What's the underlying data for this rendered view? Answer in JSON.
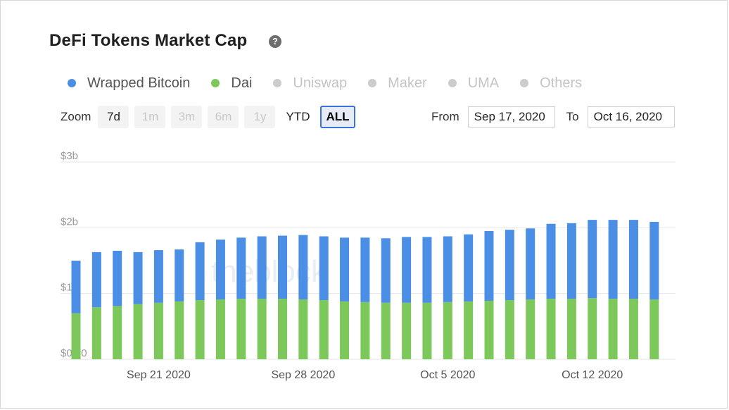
{
  "title": "DeFi Tokens Market Cap",
  "help_icon": "question-circle-icon",
  "legend": [
    {
      "label": "Wrapped Bitcoin",
      "color": "#4a8ee6",
      "enabled": true
    },
    {
      "label": "Dai",
      "color": "#7cc85a",
      "enabled": true
    },
    {
      "label": "Uniswap",
      "color": "#cccccc",
      "enabled": false
    },
    {
      "label": "Maker",
      "color": "#cccccc",
      "enabled": false
    },
    {
      "label": "UMA",
      "color": "#cccccc",
      "enabled": false
    },
    {
      "label": "Others",
      "color": "#cccccc",
      "enabled": false
    }
  ],
  "zoom": {
    "label": "Zoom",
    "buttons": [
      {
        "label": "7d",
        "state": "enabled"
      },
      {
        "label": "1m",
        "state": "disabled"
      },
      {
        "label": "3m",
        "state": "disabled"
      },
      {
        "label": "6m",
        "state": "disabled"
      },
      {
        "label": "1y",
        "state": "disabled"
      },
      {
        "label": "YTD",
        "state": "plain"
      },
      {
        "label": "ALL",
        "state": "active"
      }
    ]
  },
  "range": {
    "from_label": "From",
    "from_value": "Sep 17, 2020",
    "to_label": "To",
    "to_value": "Oct 16, 2020"
  },
  "watermark": "theblock",
  "chart_data": {
    "type": "bar",
    "stacked": true,
    "x_start": "Sep 17 2020",
    "x_end": "Oct 16 2020",
    "categories": [
      "Sep 17 2020",
      "Sep 18 2020",
      "Sep 19 2020",
      "Sep 20 2020",
      "Sep 21 2020",
      "Sep 22 2020",
      "Sep 23 2020",
      "Sep 24 2020",
      "Sep 25 2020",
      "Sep 26 2020",
      "Sep 27 2020",
      "Sep 28 2020",
      "Sep 29 2020",
      "Sep 30 2020",
      "Oct 1 2020",
      "Oct 2 2020",
      "Oct 3 2020",
      "Oct 4 2020",
      "Oct 5 2020",
      "Oct 6 2020",
      "Oct 7 2020",
      "Oct 8 2020",
      "Oct 9 2020",
      "Oct 10 2020",
      "Oct 11 2020",
      "Oct 12 2020",
      "Oct 13 2020",
      "Oct 14 2020",
      "Oct 15 2020"
    ],
    "series": [
      {
        "name": "Dai",
        "color": "#7cc85a",
        "values": [
          0.7,
          0.79,
          0.81,
          0.84,
          0.86,
          0.88,
          0.9,
          0.91,
          0.92,
          0.92,
          0.92,
          0.91,
          0.9,
          0.88,
          0.87,
          0.86,
          0.86,
          0.86,
          0.87,
          0.88,
          0.89,
          0.9,
          0.91,
          0.92,
          0.92,
          0.93,
          0.92,
          0.92,
          0.91
        ]
      },
      {
        "name": "Wrapped Bitcoin",
        "color": "#4a8ee6",
        "values": [
          0.8,
          0.84,
          0.84,
          0.79,
          0.8,
          0.79,
          0.88,
          0.91,
          0.93,
          0.95,
          0.96,
          0.98,
          0.97,
          0.97,
          0.98,
          0.98,
          1.0,
          1.0,
          1.0,
          1.02,
          1.06,
          1.07,
          1.08,
          1.14,
          1.15,
          1.19,
          1.2,
          1.2,
          1.18
        ]
      }
    ],
    "y_ticks": [
      "$0.00",
      "$1b",
      "$2b",
      "$3b"
    ],
    "y_tick_values": [
      0,
      1,
      2,
      3
    ],
    "ylim": [
      0,
      3
    ],
    "x_ticks": [
      "Sep 21 2020",
      "Sep 28 2020",
      "Oct 5 2020",
      "Oct 12 2020"
    ],
    "x_tick_indices": [
      4,
      11,
      18,
      25
    ],
    "grid": true,
    "legend_position": "top"
  }
}
